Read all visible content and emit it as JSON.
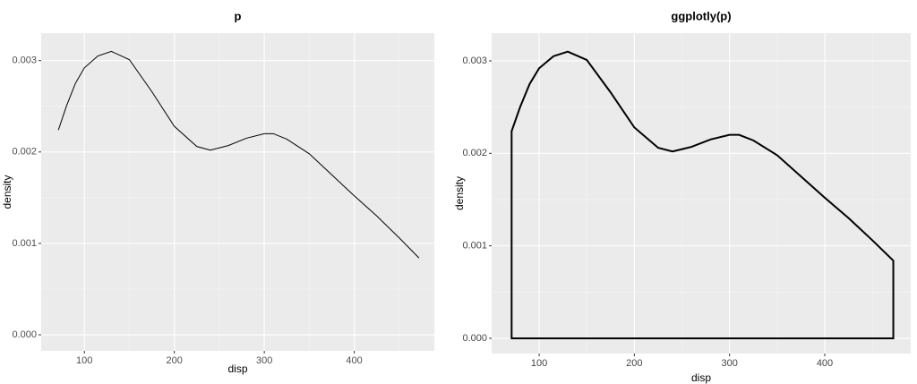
{
  "chart_data": [
    {
      "type": "line",
      "title": "p",
      "x_label": "disp",
      "y_label": "density",
      "x": [
        71.1,
        80,
        90,
        100,
        115,
        130,
        150,
        175,
        200,
        225,
        240,
        260,
        280,
        300,
        310,
        325,
        350,
        375,
        400,
        425,
        450,
        472
      ],
      "values": [
        0.00224,
        0.0025,
        0.00275,
        0.00292,
        0.00305,
        0.0031,
        0.00301,
        0.00266,
        0.00228,
        0.00206,
        0.00202,
        0.00207,
        0.00215,
        0.0022,
        0.0022,
        0.00214,
        0.00198,
        0.00175,
        0.00152,
        0.0013,
        0.00106,
        0.00084
      ],
      "color": "#000000",
      "xlim": [
        52,
        489
      ],
      "ylim": [
        -0.000176,
        0.0033
      ],
      "xticks": [
        100,
        200,
        300,
        400
      ],
      "yticks": [
        {
          "value": 0,
          "label": "0.000"
        },
        {
          "value": 0.001,
          "label": "0.001"
        },
        {
          "value": 0.002,
          "label": "0.002"
        },
        {
          "value": 0.003,
          "label": "0.003"
        }
      ],
      "x_minor_breaks": [
        150,
        250,
        350,
        450
      ],
      "y_minor_breaks": [
        0.0005,
        0.0015,
        0.0025
      ],
      "grid": true
    },
    {
      "type": "area",
      "title": "ggplotly(p)",
      "x_label": "disp",
      "y_label": "density",
      "x": [
        71.1,
        80,
        90,
        100,
        115,
        130,
        150,
        175,
        200,
        225,
        240,
        260,
        280,
        300,
        310,
        325,
        350,
        375,
        400,
        425,
        450,
        472
      ],
      "values": [
        0.00224,
        0.0025,
        0.00275,
        0.00292,
        0.00305,
        0.0031,
        0.00301,
        0.00266,
        0.00228,
        0.00206,
        0.00202,
        0.00207,
        0.00215,
        0.0022,
        0.0022,
        0.00214,
        0.00198,
        0.00175,
        0.00152,
        0.0013,
        0.00106,
        0.00084
      ],
      "color": "#000000",
      "xlim": [
        50.1,
        490.3
      ],
      "ylim": [
        -0.000165,
        0.0033
      ],
      "xticks": [
        100,
        200,
        300,
        400
      ],
      "yticks": [
        {
          "value": 0,
          "label": "0.000"
        },
        {
          "value": 0.001,
          "label": "0.001"
        },
        {
          "value": 0.002,
          "label": "0.002"
        },
        {
          "value": 0.003,
          "label": "0.003"
        }
      ],
      "x_minor_breaks": [
        150,
        250,
        350,
        450
      ],
      "y_minor_breaks": [
        0.0005,
        0.0015,
        0.0025
      ],
      "grid": true
    }
  ]
}
